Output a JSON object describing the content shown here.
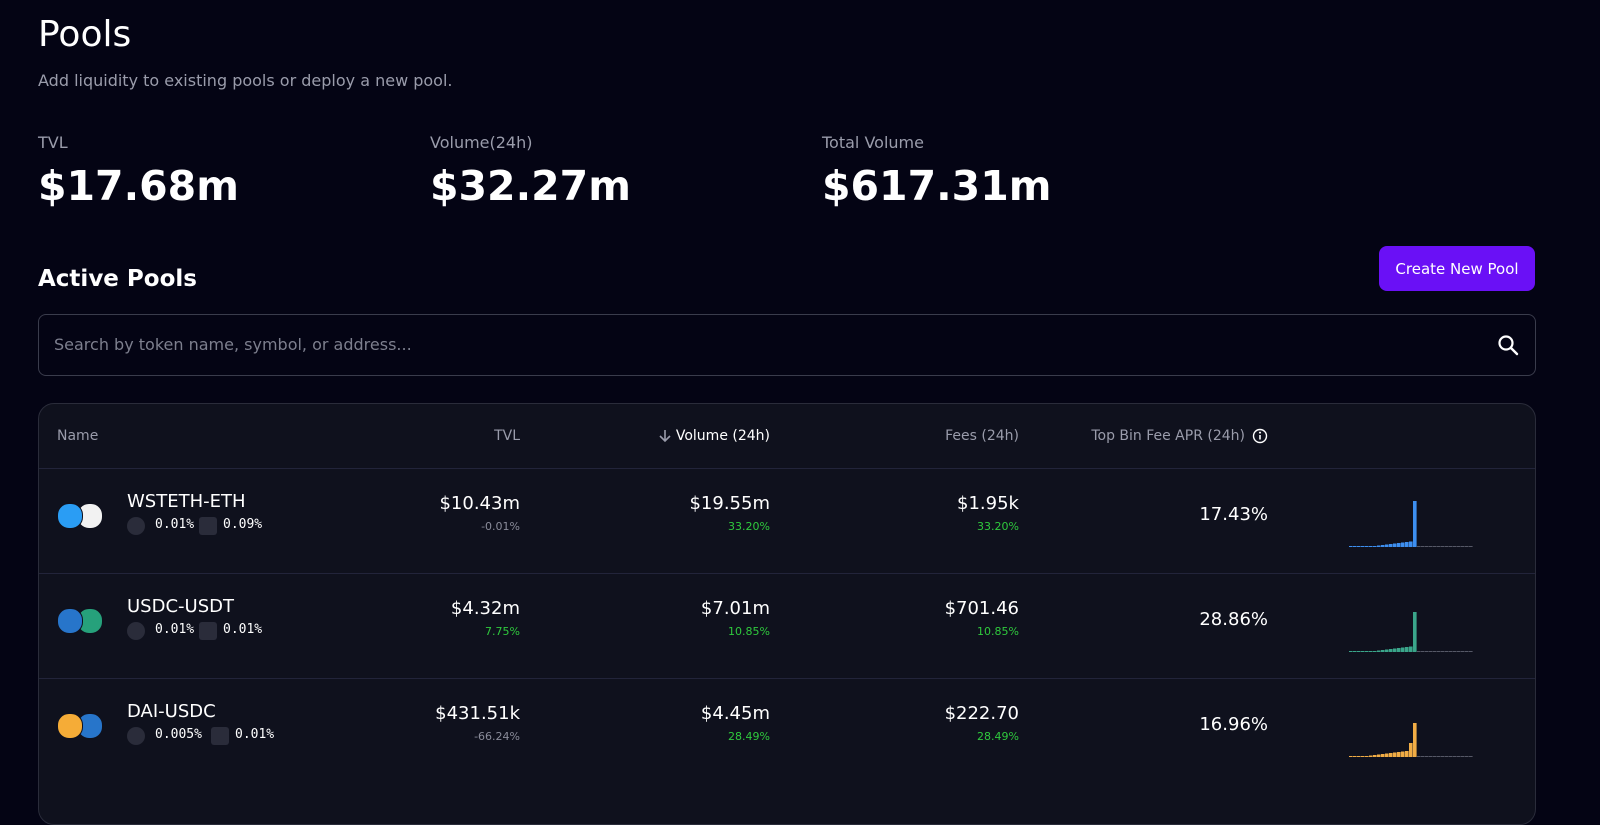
{
  "header": {
    "title": "Pools",
    "subtitle": "Add liquidity to existing pools or deploy a new pool."
  },
  "stats": [
    {
      "label": "TVL",
      "value": "$17.68m"
    },
    {
      "label": "Volume(24h)",
      "value": "$32.27m"
    },
    {
      "label": "Total Volume",
      "value": "$617.31m"
    }
  ],
  "section": {
    "title": "Active Pools",
    "button": "Create New Pool",
    "search_placeholder": "Search by token name, symbol, or address..."
  },
  "table": {
    "columns": [
      "Name",
      "TVL",
      "Volume (24h)",
      "Fees (24h)",
      "Top Bin Fee APR (24h)"
    ],
    "rows": [
      {
        "name": "WSTETH-ETH",
        "base_fee": "0.01%",
        "bin_step": "0.09%",
        "tvl": "$10.43m",
        "tvl_change": "-0.01%",
        "volume": "$19.55m",
        "volume_change": "33.20%",
        "fees": "$1.95k",
        "fees_change": "33.20%",
        "apr": "17.43%"
      },
      {
        "name": "USDC-USDT",
        "base_fee": "0.01%",
        "bin_step": "0.01%",
        "tvl": "$4.32m",
        "tvl_change": "7.75%",
        "volume": "$7.01m",
        "volume_change": "10.85%",
        "fees": "$701.46",
        "fees_change": "10.85%",
        "apr": "28.86%"
      },
      {
        "name": "DAI-USDC",
        "base_fee": "0.005%",
        "bin_step": "0.01%",
        "tvl": "$431.51k",
        "tvl_change": "-66.24%",
        "volume": "$4.45m",
        "volume_change": "28.49%",
        "fees": "$222.70",
        "fees_change": "28.49%",
        "apr": "16.96%"
      }
    ]
  }
}
